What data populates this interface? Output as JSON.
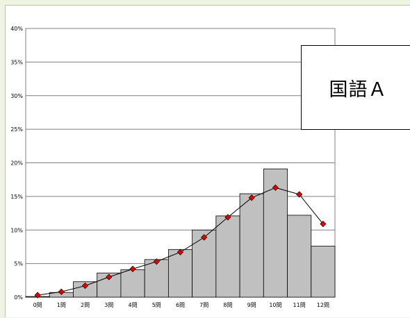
{
  "chart_data": {
    "type": "bar",
    "title": "国語Ａ",
    "categories": [
      "0問",
      "1問",
      "2問",
      "3問",
      "4問",
      "5問",
      "6問",
      "7問",
      "8問",
      "9問",
      "10問",
      "11問",
      "12問"
    ],
    "series": [
      {
        "type": "bar",
        "values": [
          0.1,
          0.7,
          2.3,
          3.6,
          4.1,
          5.6,
          7.1,
          10.0,
          12.1,
          15.4,
          19.1,
          12.2,
          7.6
        ]
      },
      {
        "type": "line",
        "values": [
          0.3,
          0.8,
          1.7,
          3.0,
          4.2,
          5.3,
          6.7,
          8.9,
          11.9,
          14.8,
          16.3,
          15.3,
          10.9
        ]
      }
    ],
    "yticks": [
      "0%",
      "5%",
      "10%",
      "15%",
      "20%",
      "25%",
      "30%",
      "35%",
      "40%"
    ],
    "ylim": [
      0,
      40
    ],
    "grid": true,
    "colors": {
      "bar": "#c0c0c0",
      "bar_stroke": "#000000",
      "marker": "#e00000",
      "line": "#000000",
      "grid": "#7f7f7f"
    }
  }
}
